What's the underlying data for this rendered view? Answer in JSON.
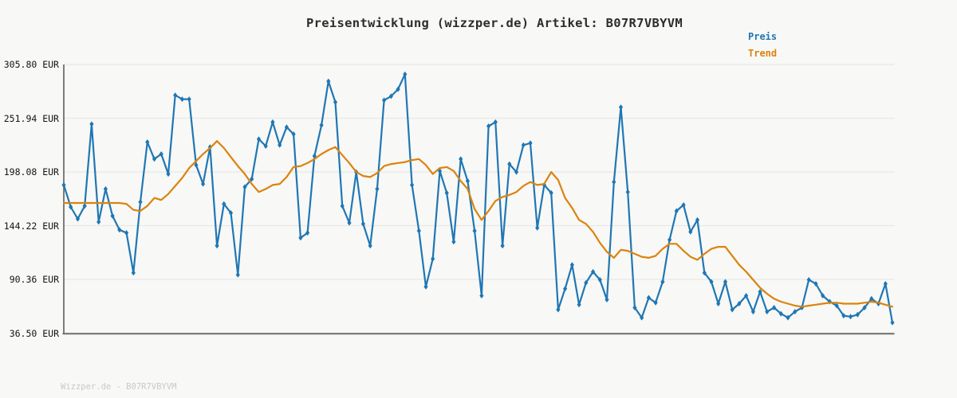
{
  "page": {
    "background": "#f8f8f6",
    "watermark": "Wizzper.de - B07R7VBYVM"
  },
  "header": {
    "title": "Preisentwicklung (wizzper.de) Artikel: B07R7VBYVM"
  },
  "legend": {
    "items": [
      {
        "label": "Preis",
        "color": "#1f77b4"
      },
      {
        "label": "Trend",
        "color": "#db830e"
      }
    ]
  },
  "chart_data": {
    "type": "line",
    "title": "Preisentwicklung (wizzper.de) Artikel: B07R7VBYVM",
    "ylabel": "EUR",
    "ylim": [
      36.5,
      305.8
    ],
    "ytick_values": [
      305.8,
      251.94,
      198.08,
      144.22,
      90.36,
      36.5
    ],
    "ytick_labels": [
      "305.80 EUR",
      "251.94 EUR",
      "198.08 EUR",
      "144.22 EUR",
      "90.36 EUR",
      "36.50 EUR"
    ],
    "xtick_labels": [],
    "grid": "horizontal",
    "legend_position": "top-right",
    "colors": {
      "grid": "#e7e7e5",
      "spine": "#6f6f6f"
    },
    "series": [
      {
        "name": "Preis",
        "color": "#1f77b4",
        "marker": "diamond",
        "line_width": 2.2,
        "values": [
          185,
          163,
          151,
          164,
          246,
          148,
          181,
          154,
          140,
          137,
          97,
          168,
          228,
          211,
          216,
          196,
          275,
          271,
          271,
          205,
          186,
          223,
          124,
          166,
          157,
          95,
          183,
          191,
          231,
          224,
          248,
          225,
          243,
          236,
          132,
          137,
          214,
          245,
          289,
          268,
          164,
          147,
          198,
          146,
          124,
          181,
          270,
          274,
          281,
          296,
          185,
          139,
          83,
          111,
          199,
          177,
          128,
          211,
          189,
          139,
          74,
          244,
          248,
          124,
          206,
          198,
          225,
          227,
          142,
          185,
          177,
          60,
          81,
          105,
          65,
          87,
          98,
          90,
          70,
          188,
          263,
          178,
          62,
          52,
          72,
          67,
          88,
          130,
          159,
          165,
          138,
          150,
          97,
          88,
          66,
          88,
          60,
          66,
          74,
          58,
          78,
          58,
          62,
          56,
          52,
          58,
          62,
          90,
          86,
          74,
          68,
          64,
          54,
          53,
          55,
          62,
          71,
          66,
          86,
          47
        ]
      },
      {
        "name": "Trend",
        "color": "#db830e",
        "marker": "none",
        "line_width": 2.2,
        "values": [
          167,
          167,
          167,
          167,
          167,
          167,
          167,
          167,
          167,
          166,
          160,
          159,
          164,
          172,
          170,
          176,
          184,
          192,
          202,
          209,
          216,
          222,
          229,
          222,
          213,
          204,
          196,
          186,
          178,
          181,
          185,
          186,
          193,
          203,
          204,
          207,
          211,
          216,
          220,
          223,
          215,
          207,
          198,
          194,
          193,
          197,
          204,
          206,
          207,
          208,
          210,
          211,
          205,
          196,
          202,
          203,
          199,
          189,
          181,
          161,
          150,
          159,
          169,
          173,
          175,
          178,
          184,
          188,
          185,
          186,
          198,
          190,
          172,
          162,
          150,
          146,
          138,
          127,
          118,
          112,
          120,
          119,
          116,
          113,
          112,
          114,
          121,
          126,
          126,
          119,
          113,
          110,
          116,
          121,
          123,
          123,
          114,
          105,
          98,
          90,
          82,
          76,
          71,
          68,
          66,
          64,
          63,
          64,
          65,
          66,
          67,
          67,
          66,
          66,
          66,
          67,
          68,
          67,
          65,
          63
        ]
      }
    ]
  }
}
